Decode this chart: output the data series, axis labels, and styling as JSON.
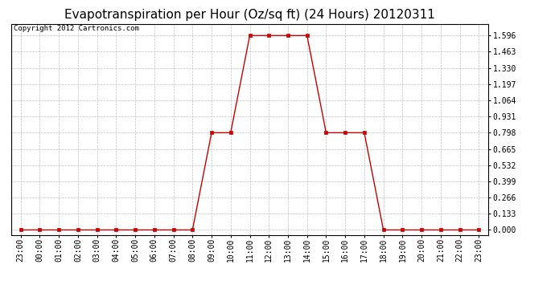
{
  "title": "Evapotranspiration per Hour (Oz/sq ft) (24 Hours) 20120311",
  "copyright": "Copyright 2012 Cartronics.com",
  "x_labels": [
    "23:00",
    "00:00",
    "01:00",
    "02:00",
    "03:00",
    "04:00",
    "05:00",
    "06:00",
    "07:00",
    "08:00",
    "09:00",
    "10:00",
    "11:00",
    "12:00",
    "13:00",
    "14:00",
    "15:00",
    "16:00",
    "17:00",
    "18:00",
    "19:00",
    "20:00",
    "21:00",
    "22:00",
    "23:00"
  ],
  "x_values": [
    0,
    1,
    2,
    3,
    4,
    5,
    6,
    7,
    8,
    9,
    10,
    11,
    12,
    13,
    14,
    15,
    16,
    17,
    18,
    19,
    20,
    21,
    22,
    23,
    24
  ],
  "y_values": [
    0,
    0,
    0,
    0,
    0,
    0,
    0,
    0,
    0,
    0,
    0.798,
    0.798,
    1.596,
    1.596,
    1.596,
    1.596,
    0.798,
    0.798,
    0.798,
    0,
    0,
    0,
    0,
    0,
    0
  ],
  "y_ticks": [
    0.0,
    0.133,
    0.266,
    0.399,
    0.532,
    0.665,
    0.798,
    0.931,
    1.064,
    1.197,
    1.33,
    1.463,
    1.596
  ],
  "line_color": "#cc0000",
  "marker_color": "#cc0000",
  "bg_color": "#ffffff",
  "plot_bg_color": "#ffffff",
  "grid_color": "#b0b0b0",
  "title_fontsize": 11,
  "copyright_fontsize": 6.5,
  "tick_fontsize": 7,
  "ylim": [
    -0.04,
    1.69
  ],
  "xlim": [
    -0.5,
    24.5
  ]
}
